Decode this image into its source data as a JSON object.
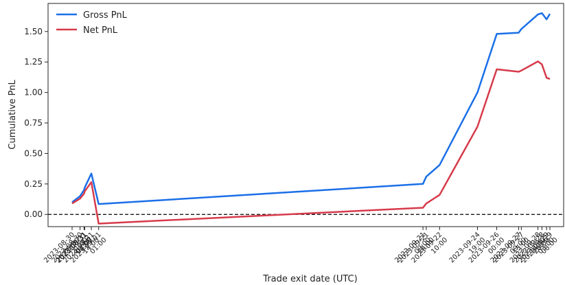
{
  "chart_data": {
    "type": "line",
    "title": "",
    "xlabel": "Trade exit date (UTC)",
    "ylabel": "Cumulative PnL",
    "ylim": [
      -0.1,
      1.73
    ],
    "yticks": [
      "0.00",
      "0.25",
      "0.50",
      "0.75",
      "1.00",
      "1.25",
      "1.50"
    ],
    "baseline": 0.0,
    "legend_position": "top-left",
    "grid": false,
    "x": [
      "2023-08-30 09:00",
      "2023-08-30 21:00",
      "2023-08-31 03:00",
      "2023-08-31 04:00",
      "2023-08-31 14:00",
      "2023-09-01 01:00",
      "2023-09-21 09:00",
      "2023-09-21 14:00",
      "2023-09-22 10:00",
      "2023-09-24 19:00",
      "2023-09-26 00:00",
      "2023-09-27 09:00",
      "2023-09-27 13:00",
      "2023-09-28 14:00",
      "2023-09-28 20:00",
      "2023-09-29 03:00",
      "2023-09-29 08:00"
    ],
    "series": [
      {
        "name": "Gross PnL",
        "color": "#1a6fe8",
        "values": [
          0.1,
          0.15,
          0.2,
          0.22,
          0.335,
          0.085,
          0.25,
          0.31,
          0.405,
          1.0,
          1.48,
          1.49,
          1.52,
          1.64,
          1.65,
          1.6,
          1.645
        ]
      },
      {
        "name": "Net PnL",
        "color": "#d63a4a",
        "values": [
          0.09,
          0.13,
          0.17,
          0.19,
          0.265,
          -0.075,
          0.055,
          0.09,
          0.16,
          0.72,
          1.19,
          1.17,
          1.18,
          1.255,
          1.23,
          1.12,
          1.11
        ]
      }
    ],
    "xtick_labels": [
      [
        "2023-08-30",
        "09:00"
      ],
      [
        "2023-08-30",
        "21:00"
      ],
      [
        "2023-08-31",
        "03:00"
      ],
      [
        "2023-08-31",
        "04:00"
      ],
      [
        "2023-08-31",
        "14:00"
      ],
      [
        "2023-09-01",
        "01:00"
      ],
      [
        "2023-09-21",
        "09:00"
      ],
      [
        "2023-09-21",
        "14:00"
      ],
      [
        "2023-09-22",
        "10:00"
      ],
      [
        "2023-09-24",
        "19:00"
      ],
      [
        "2023-09-26",
        "00:00"
      ],
      [
        "2023-09-27",
        "09:00"
      ],
      [
        "2023-09-27",
        "13:00"
      ],
      [
        "2023-09-28",
        "14:00"
      ],
      [
        "2023-09-28",
        "20:00"
      ],
      [
        "2023-09-29",
        "03:00"
      ],
      [
        "2023-09-29",
        "08:00"
      ]
    ]
  }
}
